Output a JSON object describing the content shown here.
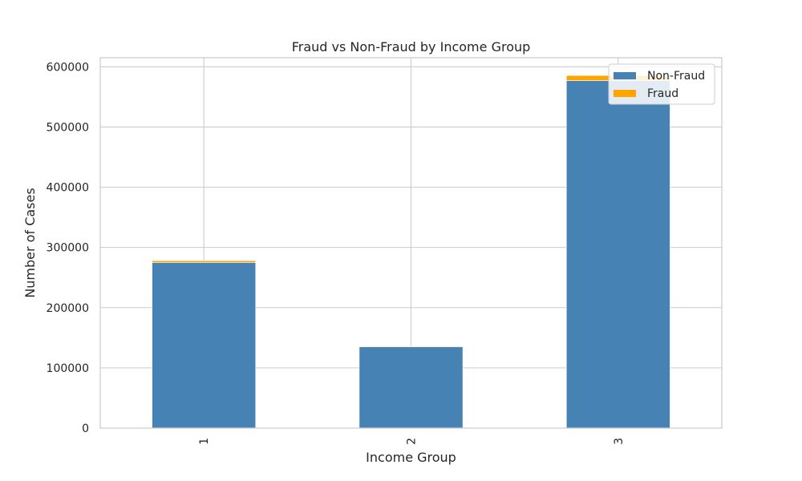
{
  "chart_data": {
    "type": "bar",
    "stacked": true,
    "title": "Fraud vs Non-Fraud by Income Group",
    "xlabel": "Income Group",
    "ylabel": "Number of Cases",
    "categories": [
      "1",
      "2",
      "3"
    ],
    "series": [
      {
        "name": "Non-Fraud",
        "color": "#4682b4",
        "values": [
          275000,
          135000,
          577000
        ]
      },
      {
        "name": "Fraud",
        "color": "#ffa500",
        "values": [
          3000,
          1000,
          8500
        ]
      }
    ],
    "ylim": [
      0,
      615000
    ],
    "yticks": [
      0,
      100000,
      200000,
      300000,
      400000,
      500000,
      600000
    ],
    "ytick_labels": [
      "0",
      "100000",
      "200000",
      "300000",
      "400000",
      "500000",
      "600000"
    ],
    "grid": true,
    "legend": "top-right"
  }
}
